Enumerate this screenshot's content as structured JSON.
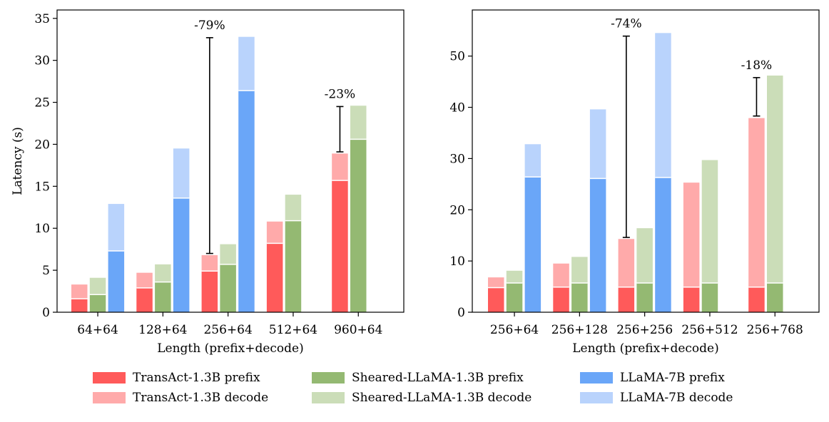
{
  "colors": {
    "transact_prefix": "#FF5A5A",
    "transact_decode": "#FFAAAA",
    "sheared_prefix": "#94B972",
    "sheared_decode": "#CBDDB8",
    "llama_prefix": "#6AA6F8",
    "llama_decode": "#B9D3FC"
  },
  "legend": [
    {
      "label": "TransAct-1.3B prefix",
      "color_key": "transact_prefix"
    },
    {
      "label": "TransAct-1.3B decode",
      "color_key": "transact_decode"
    },
    {
      "label": "Sheared-LLaMA-1.3B prefix",
      "color_key": "sheared_prefix"
    },
    {
      "label": "Sheared-LLaMA-1.3B decode",
      "color_key": "sheared_decode"
    },
    {
      "label": "LLaMA-7B prefix",
      "color_key": "llama_prefix"
    },
    {
      "label": "LLaMA-7B decode",
      "color_key": "llama_decode"
    }
  ],
  "chart_data": [
    {
      "type": "bar",
      "stacked": true,
      "title": "",
      "xlabel": "Length (prefix+decode)",
      "ylabel": "Latency (s)",
      "ylim": [
        0,
        36
      ],
      "yticks": [
        0,
        5,
        10,
        15,
        20,
        25,
        30,
        35
      ],
      "categories": [
        "64+64",
        "128+64",
        "256+64",
        "512+64",
        "960+64"
      ],
      "series": [
        {
          "name": "TransAct-1.3B",
          "prefix": [
            1.6,
            2.9,
            4.9,
            8.2,
            15.7
          ],
          "total": [
            3.3,
            4.7,
            6.8,
            10.8,
            18.9
          ]
        },
        {
          "name": "Sheared-LLaMA-1.3B",
          "prefix": [
            2.1,
            3.6,
            5.7,
            10.9,
            20.6
          ],
          "total": [
            4.1,
            5.7,
            8.1,
            14.0,
            24.6
          ]
        },
        {
          "name": "LLaMA-7B",
          "prefix": [
            7.3,
            13.6,
            26.4,
            null,
            null
          ],
          "total": [
            12.9,
            19.5,
            32.8,
            null,
            null
          ]
        }
      ],
      "annotations": [
        {
          "label": "-79%",
          "category_index": 2,
          "from": 7.0,
          "to": 32.7
        },
        {
          "label": "-23%",
          "category_index": 4,
          "from": 19.1,
          "to": 24.5
        }
      ]
    },
    {
      "type": "bar",
      "stacked": true,
      "title": "",
      "xlabel": "Length (prefix+decode)",
      "ylabel": "",
      "ylim": [
        0,
        59
      ],
      "yticks": [
        0,
        10,
        20,
        30,
        40,
        50
      ],
      "categories": [
        "256+64",
        "256+128",
        "256+256",
        "256+512",
        "256+768"
      ],
      "series": [
        {
          "name": "TransAct-1.3B",
          "prefix": [
            4.8,
            4.9,
            4.9,
            4.9,
            4.9
          ],
          "total": [
            6.8,
            9.5,
            14.3,
            25.3,
            37.9
          ]
        },
        {
          "name": "Sheared-LLaMA-1.3B",
          "prefix": [
            5.7,
            5.7,
            5.7,
            5.7,
            5.7
          ],
          "total": [
            8.1,
            10.8,
            16.4,
            29.7,
            46.2
          ]
        },
        {
          "name": "LLaMA-7B",
          "prefix": [
            26.4,
            26.1,
            26.3,
            null,
            null
          ],
          "total": [
            32.8,
            39.6,
            54.5,
            null,
            null
          ]
        }
      ],
      "annotations": [
        {
          "label": "-74%",
          "category_index": 2,
          "from": 14.6,
          "to": 53.9
        },
        {
          "label": "-18%",
          "category_index": 4,
          "from": 38.3,
          "to": 45.8
        }
      ]
    }
  ]
}
